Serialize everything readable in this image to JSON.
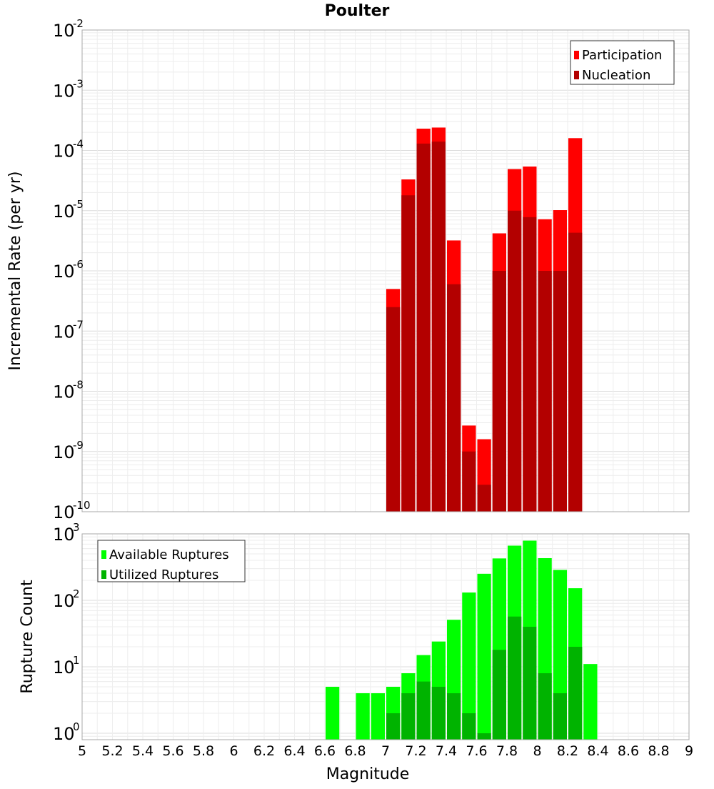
{
  "chart_data": [
    {
      "type": "bar",
      "title": "Poulter",
      "ylabel": "Incremental Rate (per yr)",
      "xlabel": "",
      "y_scale": "log",
      "ylim": [
        1e-10,
        0.01
      ],
      "xlim": [
        5,
        9
      ],
      "grid": true,
      "legend_position": "top-right",
      "y_tick_bases": [
        "10",
        "10",
        "10",
        "10",
        "10",
        "10",
        "10",
        "10",
        "10"
      ],
      "y_tick_exponents": [
        "-10",
        "-9",
        "-8",
        "-7",
        "-6",
        "-5",
        "-4",
        "-3",
        "-2"
      ],
      "bin_width": 0.1,
      "x": [
        7.05,
        7.15,
        7.25,
        7.35,
        7.45,
        7.55,
        7.65,
        7.75,
        7.85,
        7.95,
        8.05,
        8.15,
        8.25
      ],
      "series": [
        {
          "name": "Participation",
          "color": "#ff0000",
          "values": [
            5e-07,
            3.3e-05,
            0.00023,
            0.00024,
            3.2e-06,
            2.7e-09,
            1.6e-09,
            4.2e-06,
            4.9e-05,
            5.4e-05,
            7.2e-06,
            1.02e-05,
            0.00016
          ]
        },
        {
          "name": "Nucleation",
          "color": "#b30000",
          "values": [
            2.5e-07,
            1.8e-05,
            0.00013,
            0.00014,
            6e-07,
            1e-09,
            2.8e-10,
            1e-06,
            1e-05,
            7.8e-06,
            1e-06,
            1e-06,
            4.3e-06
          ]
        }
      ]
    },
    {
      "type": "bar",
      "title": "",
      "ylabel": "Rupture Count",
      "xlabel": "Magnitude",
      "y_scale": "log",
      "ylim": [
        0.8,
        1000
      ],
      "xlim": [
        5,
        9
      ],
      "grid": true,
      "legend_position": "top-left",
      "y_tick_bases": [
        "10",
        "10",
        "10",
        "10"
      ],
      "y_tick_exponents": [
        "0",
        "1",
        "2",
        "3"
      ],
      "categories": [
        "5",
        "5.2",
        "5.4",
        "5.6",
        "5.8",
        "6",
        "6.2",
        "6.4",
        "6.6",
        "6.8",
        "7",
        "7.2",
        "7.4",
        "7.6",
        "7.8",
        "8",
        "8.2",
        "8.4",
        "8.6",
        "8.8",
        "9"
      ],
      "bin_width": 0.1,
      "x": [
        6.65,
        6.85,
        6.95,
        7.05,
        7.15,
        7.25,
        7.35,
        7.45,
        7.55,
        7.65,
        7.75,
        7.85,
        7.95,
        8.05,
        8.15,
        8.25,
        8.35
      ],
      "series": [
        {
          "name": "Available Ruptures",
          "color": "#00ff00",
          "values": [
            5,
            4,
            4,
            5,
            8,
            15,
            24,
            51,
            131,
            251,
            427,
            665,
            790,
            431,
            287,
            152,
            11
          ]
        },
        {
          "name": "Utilized Ruptures",
          "color": "#00b300",
          "values": [
            null,
            null,
            null,
            2,
            4,
            6,
            5,
            4,
            2,
            1,
            18,
            57,
            40,
            8,
            4,
            20,
            null
          ]
        }
      ]
    }
  ]
}
